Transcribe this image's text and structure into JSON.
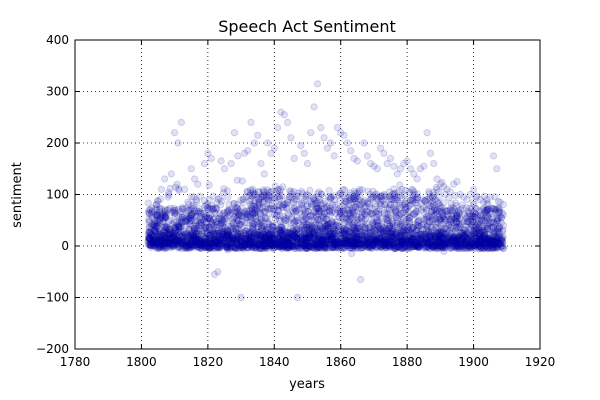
{
  "chart_data": {
    "type": "scatter",
    "title": "Speech Act Sentiment",
    "xlabel": "years",
    "ylabel": "sentiment",
    "xlim": [
      1780,
      1920
    ],
    "ylim": [
      -200,
      400
    ],
    "xticks": [
      1780,
      1800,
      1820,
      1840,
      1860,
      1880,
      1900,
      1920
    ],
    "yticks": [
      -200,
      -100,
      0,
      100,
      200,
      300,
      400
    ],
    "xtick_labels": [
      "1780",
      "1800",
      "1820",
      "1840",
      "1860",
      "1880",
      "1900",
      "1920"
    ],
    "ytick_labels": [
      "−200",
      "−100",
      "0",
      "100",
      "200",
      "300",
      "400"
    ],
    "grid": true,
    "grid_style": "dotted",
    "marker_color": "#0000cc",
    "marker_edge_color": "#000066",
    "marker_alpha": 0.12,
    "x_range_of_points": [
      1802,
      1909
    ],
    "series": [
      {
        "values_summary": "dense band of points, mostly between about -10 and 100",
        "points": [
          [
            1803,
            5
          ],
          [
            1804,
            20
          ],
          [
            1805,
            60
          ],
          [
            1806,
            110
          ],
          [
            1807,
            130
          ],
          [
            1808,
            95
          ],
          [
            1809,
            140
          ],
          [
            1810,
            220
          ],
          [
            1811,
            200
          ],
          [
            1812,
            240
          ],
          [
            1813,
            110
          ],
          [
            1814,
            85
          ],
          [
            1815,
            150
          ],
          [
            1816,
            130
          ],
          [
            1817,
            120
          ],
          [
            1818,
            40
          ],
          [
            1819,
            160
          ],
          [
            1820,
            180
          ],
          [
            1821,
            170
          ],
          [
            1822,
            -55
          ],
          [
            1823,
            -50
          ],
          [
            1824,
            165
          ],
          [
            1825,
            150
          ],
          [
            1826,
            95
          ],
          [
            1827,
            160
          ],
          [
            1828,
            220
          ],
          [
            1829,
            175
          ],
          [
            1830,
            -100
          ],
          [
            1831,
            180
          ],
          [
            1832,
            185
          ],
          [
            1833,
            240
          ],
          [
            1834,
            200
          ],
          [
            1835,
            215
          ],
          [
            1836,
            160
          ],
          [
            1837,
            140
          ],
          [
            1838,
            200
          ],
          [
            1839,
            180
          ],
          [
            1840,
            190
          ],
          [
            1841,
            230
          ],
          [
            1842,
            260
          ],
          [
            1843,
            255
          ],
          [
            1844,
            240
          ],
          [
            1845,
            210
          ],
          [
            1846,
            170
          ],
          [
            1847,
            -100
          ],
          [
            1848,
            195
          ],
          [
            1849,
            180
          ],
          [
            1850,
            160
          ],
          [
            1851,
            220
          ],
          [
            1852,
            270
          ],
          [
            1853,
            315
          ],
          [
            1854,
            230
          ],
          [
            1855,
            210
          ],
          [
            1856,
            190
          ],
          [
            1857,
            200
          ],
          [
            1858,
            175
          ],
          [
            1859,
            230
          ],
          [
            1860,
            220
          ],
          [
            1861,
            215
          ],
          [
            1862,
            200
          ],
          [
            1863,
            185
          ],
          [
            1864,
            170
          ],
          [
            1865,
            165
          ],
          [
            1866,
            -65
          ],
          [
            1867,
            200
          ],
          [
            1868,
            175
          ],
          [
            1869,
            160
          ],
          [
            1870,
            155
          ],
          [
            1871,
            150
          ],
          [
            1872,
            190
          ],
          [
            1873,
            180
          ],
          [
            1874,
            160
          ],
          [
            1875,
            170
          ],
          [
            1876,
            155
          ],
          [
            1877,
            140
          ],
          [
            1878,
            150
          ],
          [
            1879,
            160
          ],
          [
            1880,
            165
          ],
          [
            1881,
            150
          ],
          [
            1882,
            140
          ],
          [
            1883,
            130
          ],
          [
            1884,
            150
          ],
          [
            1885,
            155
          ],
          [
            1886,
            220
          ],
          [
            1887,
            180
          ],
          [
            1888,
            160
          ],
          [
            1889,
            130
          ],
          [
            1890,
            120
          ],
          [
            1891,
            115
          ],
          [
            1892,
            110
          ],
          [
            1893,
            105
          ],
          [
            1894,
            120
          ],
          [
            1895,
            125
          ],
          [
            1896,
            100
          ],
          [
            1897,
            95
          ],
          [
            1898,
            90
          ],
          [
            1899,
            100
          ],
          [
            1900,
            110
          ],
          [
            1901,
            95
          ],
          [
            1902,
            90
          ],
          [
            1903,
            85
          ],
          [
            1904,
            90
          ],
          [
            1905,
            95
          ],
          [
            1906,
            175
          ],
          [
            1907,
            150
          ],
          [
            1908,
            85
          ],
          [
            1909,
            40
          ]
        ]
      }
    ]
  }
}
